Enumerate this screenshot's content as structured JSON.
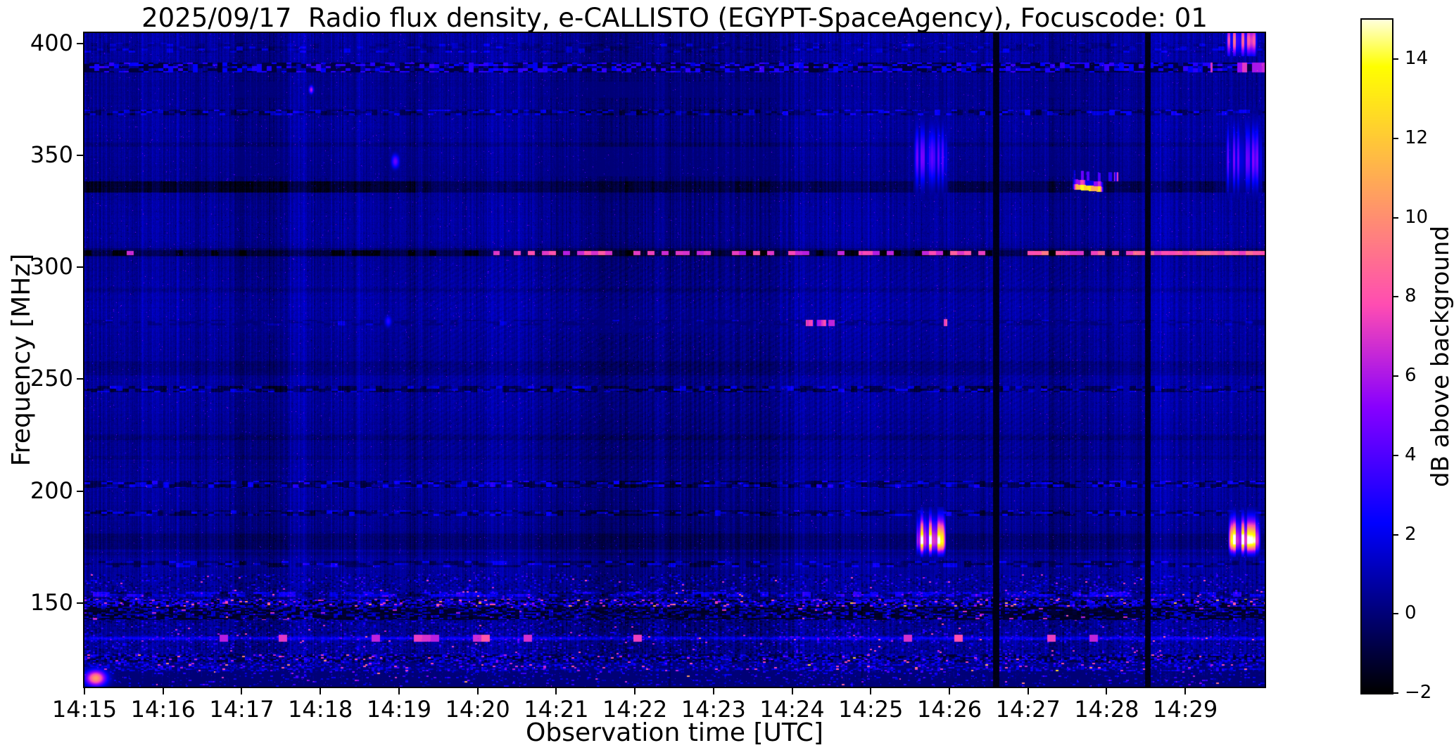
{
  "chart_data": {
    "type": "heatmap",
    "subtype": "radio-spectrogram",
    "title": "2025/09/17  Radio flux density, e-CALLISTO (EGYPT-SpaceAgency), Focuscode: 01",
    "xlabel": "Observation time [UTC]",
    "ylabel": "Frequency [MHz]",
    "colorbar_label": "dB above background",
    "colormap": "gnuplot2 (black-blue-violet-magenta-pink-orange-yellow-white)",
    "x_axis": {
      "start": "14:15",
      "end": "14:30",
      "tick_labels": [
        "14:15",
        "14:16",
        "14:17",
        "14:18",
        "14:19",
        "14:20",
        "14:21",
        "14:22",
        "14:23",
        "14:24",
        "14:25",
        "14:26",
        "14:27",
        "14:28",
        "14:29"
      ],
      "tick_minutes": [
        0,
        1,
        2,
        3,
        4,
        5,
        6,
        7,
        8,
        9,
        10,
        11,
        12,
        13,
        14
      ],
      "total_minutes": 15.01
    },
    "y_axis": {
      "min_mhz": 112.5,
      "max_mhz": 404.7,
      "ticks": [
        400,
        350,
        300,
        250,
        200,
        150
      ]
    },
    "color_axis": {
      "min_db": -2,
      "max_db": 15,
      "ticks": [
        14,
        12,
        10,
        8,
        6,
        4,
        2,
        0,
        -2
      ]
    },
    "background": {
      "base_level_db": 0.45,
      "texture": "fine vertical blue striping over dark navy, subtle diagonal moire in 205-300 MHz midband",
      "left_region_darker_before_min": 3.2,
      "light_vertical_column_minutes": [
        2.5,
        3.0
      ]
    },
    "features": {
      "data_gaps": [
        {
          "t0": 11.555,
          "t1": 11.63,
          "desc": "black vertical gap ~14:26:35"
        },
        {
          "t0": 13.48,
          "t1": 13.555,
          "desc": "black vertical gap ~14:28:30"
        }
      ],
      "rfi_bands": [
        {
          "f0": 396,
          "f1": 400.5,
          "kind": "dashed",
          "dash": 9,
          "darkP": 0.3,
          "darkS": 0.5,
          "brightP": 0.12,
          "brightV": 1.2,
          "desc": "faint dashes near top edge"
        },
        {
          "f0": 387.2,
          "f1": 391.8,
          "kind": "mixed",
          "dash": 7,
          "pinkAfterT": 14.32,
          "desc": "strong dashed RFI band ~390 MHz, black+bright blue, pink at far right"
        },
        {
          "f0": 368,
          "f1": 370.6,
          "kind": "dashed",
          "dash": 8,
          "darkP": 0.42,
          "darkS": 1.1,
          "brightP": 0.22,
          "brightV": 1.6,
          "desc": "dashed line ~369 MHz"
        },
        {
          "f0": 354,
          "f1": 356,
          "kind": "faint",
          "s": 0.35,
          "desc": "faint line ~355 MHz"
        },
        {
          "f0": 333.6,
          "f1": 338.6,
          "kind": "dark2",
          "s1": 1.5,
          "s2": 0.85,
          "tSplit": 4.2,
          "desc": "dark band ~336 MHz, strongest before 14:19"
        },
        {
          "f0": 304.9,
          "f1": 308.6,
          "kind": "pink307",
          "desc": "dark band ~307 MHz with magenta dashes intensifying after 14:26:35"
        },
        {
          "f0": 289,
          "f1": 291,
          "kind": "faint",
          "s": 0.3,
          "desc": "faint line ~290 MHz"
        },
        {
          "f0": 274,
          "f1": 276.6,
          "kind": "dashed",
          "dash": 10,
          "darkP": 0.5,
          "darkS": 0.7,
          "brightP": 0.05,
          "brightV": 1.0,
          "desc": "faint line ~275 MHz"
        },
        {
          "f0": 252,
          "f1": 258,
          "kind": "faint",
          "s": 0.4,
          "desc": "faint wide band ~255 MHz"
        },
        {
          "f0": 244.4,
          "f1": 247.1,
          "kind": "dashed",
          "dash": 9,
          "darkP": 0.5,
          "darkS": 1.5,
          "brightP": 0.2,
          "brightV": 1.5,
          "desc": "dashed line ~246 MHz"
        },
        {
          "f0": 223,
          "f1": 225.5,
          "kind": "faint",
          "s": 0.35,
          "desc": "faint line ~224 MHz"
        },
        {
          "f0": 214,
          "f1": 216,
          "kind": "faint",
          "s": 0.25,
          "desc": "faint line ~215 MHz"
        },
        {
          "f0": 201.5,
          "f1": 204.6,
          "kind": "dashed",
          "dash": 8,
          "darkP": 0.48,
          "darkS": 1.4,
          "brightP": 0.25,
          "brightV": 1.8,
          "desc": "dashed band ~203 MHz"
        },
        {
          "f0": 189,
          "f1": 191.6,
          "kind": "dashed",
          "dash": 8,
          "darkP": 0.45,
          "darkS": 1.2,
          "brightP": 0.2,
          "brightV": 1.5,
          "desc": "dashed line ~190 MHz"
        },
        {
          "f0": 174,
          "f1": 181,
          "kind": "faint",
          "s": 0.55,
          "desc": "dark textured band 174-181 MHz"
        },
        {
          "f0": 171.5,
          "f1": 173,
          "kind": "faint",
          "s": 0.3,
          "desc": "faint line ~172 MHz"
        },
        {
          "f0": 166,
          "f1": 169,
          "kind": "dashed",
          "dash": 10,
          "darkP": 0.45,
          "darkS": 1.1,
          "brightP": 0.18,
          "brightV": 1.6,
          "desc": "dashed line ~167 MHz"
        },
        {
          "f0": 153,
          "f1": 155,
          "kind": "dashed",
          "dash": 12,
          "darkP": 0.2,
          "darkS": 0.8,
          "brightP": 0.45,
          "brightV": 2.0,
          "desc": "bright blue line ~154 MHz"
        },
        {
          "f0": 148.6,
          "f1": 152,
          "kind": "speckle",
          "cell": 4,
          "darkP": 0.3,
          "darkV": -1.5,
          "brightP": 0.45,
          "brightV": 2.2,
          "pinkP": 0.035,
          "orangeP": 0.006,
          "desc": "noisy bright speckle line ~150 MHz"
        },
        {
          "f0": 142.5,
          "f1": 148.4,
          "kind": "blackNoisy",
          "desc": "black noisy band 143-148 MHz"
        },
        {
          "f0": 132.8,
          "f1": 135.8,
          "kind": "brightLine",
          "fc": 134.3,
          "desc": "bright blue line ~134 MHz with magenta dashes"
        },
        {
          "f0": 119.5,
          "f1": 127,
          "kind": "speckle",
          "cell": 4,
          "darkP": 0.35,
          "darkV": -1.2,
          "brightP": 0.3,
          "brightV": 1.8,
          "pinkP": 0.02,
          "orangeP": 0.002,
          "desc": "speckled band 120-127 MHz"
        },
        {
          "f0": 112,
          "f1": 119.5,
          "kind": "bottomDark",
          "desc": "dark noisy bottom edge band"
        }
      ],
      "bursts": [
        {
          "kind": "striped",
          "t0": 10.57,
          "t1": 10.96,
          "f0": 170.5,
          "f1": 193,
          "fPeak": 177.6,
          "sUp": 6.5,
          "sDn": 3.2,
          "vMax": 15,
          "per": 4,
          "duty": 0.62,
          "desc": "strong striped burst ~14:25:40, 172-191 MHz, white/yellow core 175-180 MHz"
        },
        {
          "kind": "striped",
          "t0": 14.54,
          "t1": 14.96,
          "f0": 170.5,
          "f1": 193,
          "fPeak": 177.8,
          "sUp": 6.0,
          "sDn": 3.2,
          "vMax": 15,
          "per": 4,
          "duty": 0.6,
          "desc": "strong striped burst ~14:29:40, 172-191 MHz"
        },
        {
          "kind": "striped",
          "t0": 10.54,
          "t1": 10.98,
          "f0": 330,
          "f1": 372,
          "fPeak": 349,
          "sUp": 9,
          "sDn": 8,
          "vMax": 4.3,
          "per": 3,
          "duty": 0.55,
          "desc": "blue striped burst ~14:25:40, 337-367 MHz"
        },
        {
          "kind": "striped",
          "t0": 14.5,
          "t1": 14.98,
          "f0": 330,
          "f1": 372,
          "fPeak": 348,
          "sUp": 10,
          "sDn": 8,
          "vMax": 4.6,
          "per": 3,
          "duty": 0.55,
          "desc": "blue striped burst ~14:29:40, 337-367 MHz"
        },
        {
          "kind": "striped",
          "t0": 14.5,
          "t1": 14.93,
          "f0": 394.5,
          "f1": 405,
          "fPeak": 401.5,
          "sUp": 5,
          "sDn": 4.5,
          "vMax": 8.3,
          "per": 4,
          "duty": 0.6,
          "desc": "magenta band at top edge ~14:29:30-14:29:55"
        },
        {
          "kind": "patch",
          "t0": 12.56,
          "t1": 12.96,
          "f0": 333.8,
          "f1": 343.6,
          "slope": 1.3,
          "desc": "orange/yellow drifting patch ~14:27:35-14:27:55, 334-343 MHz"
        },
        {
          "kind": "flat",
          "t0": 13.02,
          "t1": 13.06,
          "f0": 338.5,
          "f1": 342.5,
          "v": 7.8,
          "desc": "pink tick ~14:28:02"
        },
        {
          "kind": "flat",
          "t0": 13.09,
          "t1": 13.14,
          "f0": 338.5,
          "f1": 342.5,
          "v": 7.8,
          "desc": "pink tick ~14:28:07"
        },
        {
          "kind": "flat",
          "t0": 9.17,
          "t1": 9.27,
          "f0": 273.8,
          "f1": 276.6,
          "v": 7.4,
          "desc": "magenta dash ~275 MHz, 14:24:11"
        },
        {
          "kind": "flat",
          "t0": 9.3,
          "t1": 9.43,
          "f0": 273.8,
          "f1": 276.6,
          "v": 7.0,
          "desc": "magenta dash ~275 MHz, 14:24:20"
        },
        {
          "kind": "flat",
          "t0": 9.46,
          "t1": 9.54,
          "f0": 273.8,
          "f1": 276.6,
          "v": 7.2,
          "desc": "magenta dash ~275 MHz, 14:24:29"
        },
        {
          "kind": "flat",
          "t0": 10.92,
          "t1": 10.97,
          "f0": 273.8,
          "f1": 277,
          "v": 8.4,
          "desc": "magenta dot ~275 MHz, 14:25:56"
        }
      ],
      "dots": [
        {
          "t": 3.95,
          "f": 347.5,
          "rt": 0.035,
          "rf": 2.2,
          "v": 4.6,
          "desc": "small bright blue dot 14:18:57, ~347 MHz"
        },
        {
          "t": 3.86,
          "f": 276,
          "rt": 0.03,
          "rf": 1.8,
          "v": 3.2,
          "desc": "small blue dot 14:18:52, ~276 MHz"
        },
        {
          "t": 2.88,
          "f": 379.5,
          "rt": 0.02,
          "rf": 1.2,
          "v": 6.5,
          "desc": "tiny magenta speck 14:17:53, ~379 MHz"
        },
        {
          "t": 0.14,
          "f": 116.5,
          "rt": 0.09,
          "rf": 2.4,
          "v": 10.5,
          "desc": "orange blob bottom-left corner"
        }
      ],
      "thin_dark_columns": [
        {
          "t": 7.44,
          "s": 0.55
        },
        {
          "t": 9.88,
          "s": 0.5
        }
      ]
    }
  }
}
